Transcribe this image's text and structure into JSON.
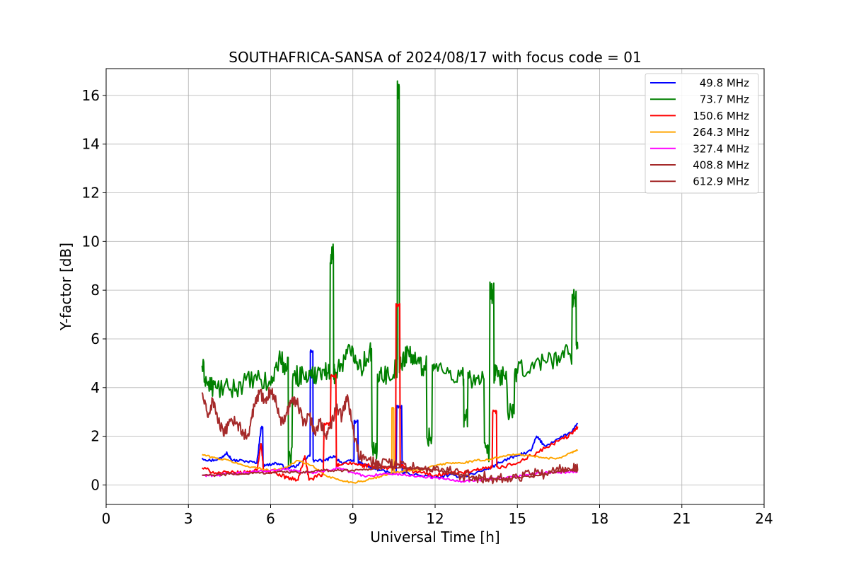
{
  "chart_data": {
    "type": "line",
    "title": "SOUTHAFRICA-SANSA of 2024/08/17 with focus code = 01",
    "xlabel": "Universal Time [h]",
    "ylabel": "Y-factor [dB]",
    "xlim": [
      0,
      24
    ],
    "ylim": [
      -0.8,
      17.1
    ],
    "xticks": [
      0,
      3,
      6,
      9,
      12,
      15,
      18,
      21,
      24
    ],
    "yticks": [
      0,
      2,
      4,
      6,
      8,
      10,
      12,
      14,
      16
    ],
    "grid": true,
    "legend_position": "top-right",
    "series": [
      {
        "name": "49.8 MHz",
        "color": "#0000ff",
        "points": [
          [
            3.5,
            1.1
          ],
          [
            3.8,
            1.0
          ],
          [
            4.2,
            1.1
          ],
          [
            4.4,
            1.35
          ],
          [
            4.6,
            1.0
          ],
          [
            5.0,
            1.0
          ],
          [
            5.5,
            0.9
          ],
          [
            5.65,
            2.35
          ],
          [
            5.8,
            0.8
          ],
          [
            6.2,
            0.9
          ],
          [
            6.6,
            0.7
          ],
          [
            7.0,
            0.8
          ],
          [
            7.4,
            1.2
          ],
          [
            7.5,
            5.5
          ],
          [
            7.6,
            1.0
          ],
          [
            8.0,
            1.0
          ],
          [
            8.3,
            1.2
          ],
          [
            8.6,
            0.9
          ],
          [
            9.0,
            1.0
          ],
          [
            9.1,
            2.6
          ],
          [
            9.3,
            0.9
          ],
          [
            9.7,
            0.7
          ],
          [
            10.0,
            0.6
          ],
          [
            10.5,
            0.5
          ],
          [
            10.7,
            3.2
          ],
          [
            10.9,
            0.5
          ],
          [
            11.4,
            0.4
          ],
          [
            12.0,
            0.3
          ],
          [
            12.5,
            0.4
          ],
          [
            13.0,
            0.35
          ],
          [
            13.5,
            0.5
          ],
          [
            14.0,
            0.7
          ],
          [
            14.5,
            1.0
          ],
          [
            15.0,
            1.2
          ],
          [
            15.5,
            1.4
          ],
          [
            15.7,
            2.0
          ],
          [
            16.0,
            1.6
          ],
          [
            16.5,
            1.9
          ],
          [
            17.0,
            2.2
          ],
          [
            17.2,
            2.5
          ]
        ]
      },
      {
        "name": "73.7 MHz",
        "color": "#008000",
        "points": [
          [
            3.5,
            4.9
          ],
          [
            3.7,
            4.1
          ],
          [
            4.0,
            4.0
          ],
          [
            4.5,
            3.9
          ],
          [
            5.0,
            4.2
          ],
          [
            5.5,
            4.3
          ],
          [
            6.0,
            4.1
          ],
          [
            6.3,
            5.2
          ],
          [
            6.6,
            4.8
          ],
          [
            6.7,
            1.2
          ],
          [
            6.9,
            4.5
          ],
          [
            7.2,
            4.5
          ],
          [
            7.5,
            4.4
          ],
          [
            7.8,
            4.8
          ],
          [
            8.1,
            4.6
          ],
          [
            8.25,
            9.5
          ],
          [
            8.35,
            4.6
          ],
          [
            8.7,
            5.2
          ],
          [
            9.0,
            5.6
          ],
          [
            9.3,
            4.8
          ],
          [
            9.6,
            5.5
          ],
          [
            9.8,
            1.3
          ],
          [
            10.0,
            4.6
          ],
          [
            10.3,
            4.5
          ],
          [
            10.6,
            4.8
          ],
          [
            10.65,
            16.3
          ],
          [
            10.75,
            4.9
          ],
          [
            11.0,
            5.6
          ],
          [
            11.3,
            5.0
          ],
          [
            11.6,
            4.9
          ],
          [
            11.8,
            2.0
          ],
          [
            12.0,
            4.8
          ],
          [
            12.5,
            4.6
          ],
          [
            13.0,
            4.5
          ],
          [
            13.1,
            2.7
          ],
          [
            13.3,
            4.4
          ],
          [
            13.7,
            4.4
          ],
          [
            13.9,
            1.3
          ],
          [
            14.1,
            7.9
          ],
          [
            14.2,
            4.5
          ],
          [
            14.5,
            4.5
          ],
          [
            14.8,
            2.9
          ],
          [
            15.0,
            4.6
          ],
          [
            15.5,
            4.9
          ],
          [
            16.0,
            5.1
          ],
          [
            16.5,
            5.3
          ],
          [
            16.9,
            5.4
          ],
          [
            17.1,
            7.7
          ],
          [
            17.2,
            5.6
          ]
        ]
      },
      {
        "name": "150.6 MHz",
        "color": "#ff0000",
        "points": [
          [
            3.5,
            0.7
          ],
          [
            4.0,
            0.5
          ],
          [
            4.5,
            0.5
          ],
          [
            5.0,
            0.5
          ],
          [
            5.5,
            0.6
          ],
          [
            5.65,
            1.7
          ],
          [
            5.75,
            0.6
          ],
          [
            6.2,
            0.5
          ],
          [
            6.6,
            0.3
          ],
          [
            7.0,
            0.2
          ],
          [
            7.25,
            1.2
          ],
          [
            7.4,
            0.2
          ],
          [
            7.8,
            0.4
          ],
          [
            8.1,
            2.5
          ],
          [
            8.3,
            4.5
          ],
          [
            8.5,
            0.8
          ],
          [
            9.0,
            0.9
          ],
          [
            9.3,
            0.8
          ],
          [
            9.6,
            0.8
          ],
          [
            10.0,
            0.7
          ],
          [
            10.5,
            0.7
          ],
          [
            10.65,
            7.4
          ],
          [
            10.8,
            0.8
          ],
          [
            11.0,
            0.6
          ],
          [
            11.5,
            0.5
          ],
          [
            12.0,
            0.4
          ],
          [
            12.5,
            0.5
          ],
          [
            13.0,
            0.5
          ],
          [
            13.5,
            0.6
          ],
          [
            14.0,
            0.7
          ],
          [
            14.2,
            3.0
          ],
          [
            14.3,
            0.7
          ],
          [
            15.0,
            0.9
          ],
          [
            15.5,
            1.2
          ],
          [
            16.0,
            1.5
          ],
          [
            16.5,
            1.8
          ],
          [
            17.0,
            2.1
          ],
          [
            17.2,
            2.4
          ]
        ]
      },
      {
        "name": "264.3 MHz",
        "color": "#ffa500",
        "points": [
          [
            3.5,
            1.25
          ],
          [
            4.0,
            1.1
          ],
          [
            4.5,
            1.0
          ],
          [
            5.0,
            0.8
          ],
          [
            5.5,
            0.7
          ],
          [
            6.0,
            0.6
          ],
          [
            6.5,
            0.7
          ],
          [
            7.0,
            1.0
          ],
          [
            7.5,
            0.8
          ],
          [
            8.0,
            0.4
          ],
          [
            8.5,
            0.2
          ],
          [
            9.0,
            0.1
          ],
          [
            9.5,
            0.2
          ],
          [
            10.0,
            0.35
          ],
          [
            10.4,
            0.5
          ],
          [
            10.45,
            3.15
          ],
          [
            10.55,
            0.5
          ],
          [
            11.0,
            0.6
          ],
          [
            11.5,
            0.6
          ],
          [
            12.0,
            0.8
          ],
          [
            12.5,
            0.9
          ],
          [
            13.0,
            0.9
          ],
          [
            13.5,
            1.0
          ],
          [
            14.0,
            1.05
          ],
          [
            14.5,
            1.2
          ],
          [
            15.0,
            1.25
          ],
          [
            15.5,
            1.2
          ],
          [
            16.0,
            1.1
          ],
          [
            16.5,
            1.1
          ],
          [
            17.0,
            1.35
          ],
          [
            17.2,
            1.45
          ]
        ]
      },
      {
        "name": "327.4 MHz",
        "color": "#ff00ff",
        "points": [
          [
            3.5,
            0.4
          ],
          [
            4.0,
            0.4
          ],
          [
            4.5,
            0.45
          ],
          [
            5.0,
            0.5
          ],
          [
            5.5,
            0.55
          ],
          [
            6.0,
            0.6
          ],
          [
            6.5,
            0.65
          ],
          [
            7.0,
            0.55
          ],
          [
            7.5,
            0.5
          ],
          [
            8.0,
            0.6
          ],
          [
            8.5,
            0.7
          ],
          [
            9.0,
            0.5
          ],
          [
            9.5,
            0.35
          ],
          [
            10.0,
            0.45
          ],
          [
            10.5,
            0.45
          ],
          [
            11.0,
            0.4
          ],
          [
            11.5,
            0.35
          ],
          [
            12.0,
            0.3
          ],
          [
            12.5,
            0.25
          ],
          [
            13.0,
            0.15
          ],
          [
            13.5,
            0.2
          ],
          [
            14.0,
            0.25
          ],
          [
            14.5,
            0.3
          ],
          [
            15.0,
            0.35
          ],
          [
            15.5,
            0.45
          ],
          [
            16.0,
            0.5
          ],
          [
            16.5,
            0.5
          ],
          [
            17.0,
            0.55
          ],
          [
            17.2,
            0.55
          ]
        ]
      },
      {
        "name": "408.8 MHz",
        "color": "#a52a2a",
        "points": [
          [
            3.5,
            0.4
          ],
          [
            4.0,
            0.4
          ],
          [
            4.5,
            0.45
          ],
          [
            5.0,
            0.45
          ],
          [
            5.5,
            0.5
          ],
          [
            6.0,
            0.5
          ],
          [
            6.5,
            0.55
          ],
          [
            7.0,
            0.5
          ],
          [
            7.5,
            0.55
          ],
          [
            8.0,
            0.6
          ],
          [
            8.5,
            0.6
          ],
          [
            9.0,
            0.6
          ],
          [
            9.5,
            0.65
          ],
          [
            10.0,
            0.7
          ],
          [
            10.5,
            0.75
          ],
          [
            11.0,
            0.7
          ],
          [
            11.5,
            0.65
          ],
          [
            12.0,
            0.6
          ],
          [
            12.5,
            0.5
          ],
          [
            13.0,
            0.4
          ],
          [
            13.5,
            0.3
          ],
          [
            14.0,
            0.25
          ],
          [
            14.5,
            0.25
          ],
          [
            15.0,
            0.3
          ],
          [
            15.5,
            0.35
          ],
          [
            16.0,
            0.45
          ],
          [
            16.5,
            0.55
          ],
          [
            17.0,
            0.6
          ],
          [
            17.2,
            0.6
          ]
        ]
      },
      {
        "name": "612.9 MHz",
        "color": "#a52a2a",
        "points": [
          [
            3.5,
            3.8
          ],
          [
            3.7,
            2.8
          ],
          [
            3.9,
            3.5
          ],
          [
            4.1,
            2.6
          ],
          [
            4.3,
            2.0
          ],
          [
            4.5,
            2.7
          ],
          [
            4.8,
            2.5
          ],
          [
            5.0,
            2.1
          ],
          [
            5.2,
            2.0
          ],
          [
            5.4,
            3.3
          ],
          [
            5.6,
            3.8
          ],
          [
            5.8,
            3.5
          ],
          [
            6.0,
            3.9
          ],
          [
            6.2,
            3.4
          ],
          [
            6.4,
            2.6
          ],
          [
            6.6,
            3.0
          ],
          [
            6.8,
            3.6
          ],
          [
            7.0,
            3.3
          ],
          [
            7.2,
            2.5
          ],
          [
            7.4,
            2.9
          ],
          [
            7.6,
            2.1
          ],
          [
            7.8,
            2.7
          ],
          [
            8.0,
            2.0
          ],
          [
            8.2,
            2.4
          ],
          [
            8.4,
            3.2
          ],
          [
            8.6,
            2.8
          ],
          [
            8.8,
            3.7
          ],
          [
            9.0,
            2.3
          ],
          [
            9.2,
            1.3
          ],
          [
            9.5,
            1.0
          ],
          [
            9.8,
            0.9
          ],
          [
            10.0,
            0.8
          ],
          [
            10.3,
            0.9
          ],
          [
            10.6,
            0.8
          ],
          [
            11.0,
            0.7
          ],
          [
            11.5,
            0.7
          ],
          [
            12.0,
            0.65
          ],
          [
            12.5,
            0.55
          ],
          [
            13.0,
            0.4
          ],
          [
            13.5,
            0.35
          ],
          [
            14.0,
            0.3
          ],
          [
            14.5,
            0.3
          ],
          [
            15.0,
            0.35
          ],
          [
            15.5,
            0.4
          ],
          [
            16.0,
            0.5
          ],
          [
            16.5,
            0.6
          ],
          [
            17.0,
            0.65
          ],
          [
            17.2,
            0.6
          ]
        ]
      }
    ]
  }
}
